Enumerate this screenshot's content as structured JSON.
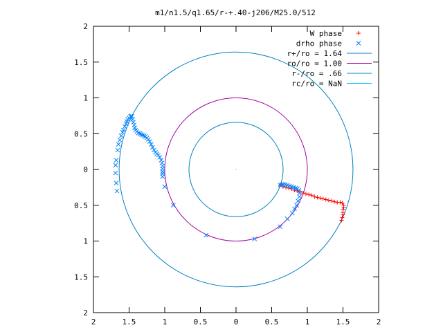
{
  "chart_data": {
    "type": "scatter",
    "title": "m1/n1.5/q1.65/r-+.40-j206/M25.0/512",
    "xlim": [
      -2,
      2
    ],
    "ylim": [
      -2,
      2
    ],
    "x_ticks": [
      -2,
      -1.5,
      -1,
      -0.5,
      0,
      0.5,
      1,
      1.5,
      2
    ],
    "y_ticks": [
      -2,
      -1.5,
      -1,
      -0.5,
      0,
      0.5,
      1,
      1.5,
      2
    ],
    "x_tick_labels": [
      "2",
      "1.5",
      "1",
      "0.5",
      "0",
      "0.5",
      "1",
      "1.5",
      "2"
    ],
    "y_tick_labels": [
      "2",
      "1.5",
      "1",
      "0.5",
      "0",
      "0.5",
      "1",
      "1.5",
      "2"
    ],
    "legend_position": "top-right",
    "grid": false,
    "series": [
      {
        "name": "W phase",
        "marker": "plus",
        "color": "#ff0000",
        "points": [
          [
            0.62,
            -0.22
          ],
          [
            0.66,
            -0.24
          ],
          [
            0.7,
            -0.25
          ],
          [
            0.74,
            -0.26
          ],
          [
            0.78,
            -0.27
          ],
          [
            0.82,
            -0.29
          ],
          [
            0.86,
            -0.3
          ],
          [
            0.9,
            -0.31
          ],
          [
            0.94,
            -0.33
          ],
          [
            0.98,
            -0.34
          ],
          [
            1.02,
            -0.35
          ],
          [
            1.06,
            -0.36
          ],
          [
            1.1,
            -0.38
          ],
          [
            1.14,
            -0.39
          ],
          [
            1.18,
            -0.4
          ],
          [
            1.22,
            -0.41
          ],
          [
            1.26,
            -0.42
          ],
          [
            1.3,
            -0.43
          ],
          [
            1.34,
            -0.44
          ],
          [
            1.38,
            -0.45
          ],
          [
            1.42,
            -0.46
          ],
          [
            1.46,
            -0.46
          ],
          [
            1.49,
            -0.47
          ],
          [
            1.51,
            -0.5
          ],
          [
            1.51,
            -0.53
          ],
          [
            1.5,
            -0.56
          ],
          [
            1.5,
            -0.6
          ],
          [
            1.5,
            -0.63
          ],
          [
            1.49,
            -0.67
          ],
          [
            1.48,
            -0.71
          ]
        ]
      },
      {
        "name": "drho phase",
        "marker": "x",
        "color": "#0080ff",
        "points": [
          [
            -1.67,
            -0.3
          ],
          [
            -1.68,
            -0.19
          ],
          [
            -1.69,
            -0.05
          ],
          [
            -1.69,
            0.06
          ],
          [
            -1.68,
            0.13
          ],
          [
            -1.66,
            0.27
          ],
          [
            -1.65,
            0.35
          ],
          [
            -1.63,
            0.41
          ],
          [
            -1.61,
            0.47
          ],
          [
            -1.59,
            0.52
          ],
          [
            -1.58,
            0.55
          ],
          [
            -1.56,
            0.6
          ],
          [
            -1.54,
            0.64
          ],
          [
            -1.53,
            0.67
          ],
          [
            -1.52,
            0.7
          ],
          [
            -1.5,
            0.72
          ],
          [
            -1.48,
            0.74
          ],
          [
            -1.47,
            0.75
          ],
          [
            -1.46,
            0.74
          ],
          [
            -1.45,
            0.7
          ],
          [
            -1.44,
            0.66
          ],
          [
            -1.43,
            0.62
          ],
          [
            -1.42,
            0.58
          ],
          [
            -1.41,
            0.55
          ],
          [
            -1.39,
            0.53
          ],
          [
            -1.37,
            0.51
          ],
          [
            -1.35,
            0.5
          ],
          [
            -1.33,
            0.49
          ],
          [
            -1.31,
            0.48
          ],
          [
            -1.29,
            0.47
          ],
          [
            -1.27,
            0.46
          ],
          [
            -1.25,
            0.44
          ],
          [
            -1.23,
            0.42
          ],
          [
            -1.21,
            0.39
          ],
          [
            -1.19,
            0.35
          ],
          [
            -1.17,
            0.31
          ],
          [
            -1.15,
            0.27
          ],
          [
            -1.13,
            0.24
          ],
          [
            -1.11,
            0.22
          ],
          [
            -1.09,
            0.2
          ],
          [
            -1.07,
            0.17
          ],
          [
            -1.05,
            0.13
          ],
          [
            -1.04,
            0.09
          ],
          [
            -1.03,
            0.05
          ],
          [
            -1.03,
            0.01
          ],
          [
            -1.03,
            -0.03
          ],
          [
            -1.03,
            -0.06
          ],
          [
            -1.03,
            -0.1
          ],
          [
            -1.0,
            -0.24
          ],
          [
            -0.88,
            -0.5
          ],
          [
            -0.42,
            -0.92
          ],
          [
            0.26,
            -0.97
          ],
          [
            0.62,
            -0.8
          ],
          [
            0.72,
            -0.69
          ],
          [
            0.79,
            -0.61
          ],
          [
            0.82,
            -0.55
          ],
          [
            0.85,
            -0.5
          ],
          [
            0.87,
            -0.44
          ],
          [
            0.89,
            -0.38
          ],
          [
            0.89,
            -0.33
          ],
          [
            0.88,
            -0.29
          ],
          [
            0.86,
            -0.27
          ],
          [
            0.84,
            -0.26
          ],
          [
            0.81,
            -0.25
          ],
          [
            0.78,
            -0.24
          ],
          [
            0.75,
            -0.23
          ],
          [
            0.72,
            -0.22
          ],
          [
            0.69,
            -0.21
          ],
          [
            0.66,
            -0.21
          ],
          [
            0.64,
            -0.21
          ],
          [
            0.62,
            -0.22
          ]
        ]
      },
      {
        "name": "r+/ro = 1.64",
        "marker": "circle",
        "radius": 1.64,
        "color": "#0080c0"
      },
      {
        "name": "ro/ro = 1.00",
        "marker": "circle",
        "radius": 1.0,
        "color": "#a000a0"
      },
      {
        "name": "r-/ro = .66",
        "marker": "circle",
        "radius": 0.66,
        "color": "#0080c0"
      },
      {
        "name": "rc/ro = NaN",
        "marker": "circle",
        "radius": null,
        "color": "#00c0ff"
      }
    ]
  }
}
